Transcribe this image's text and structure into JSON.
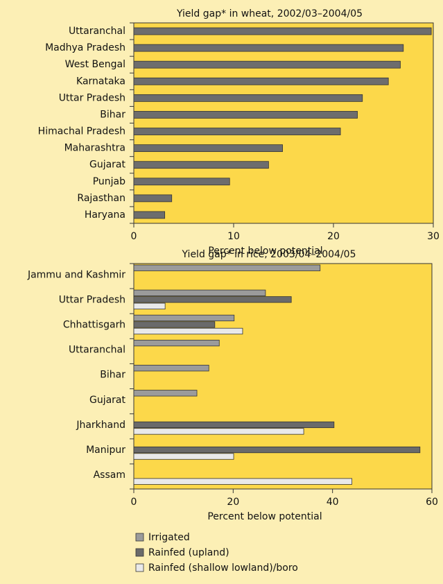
{
  "chart_data": [
    {
      "type": "bar",
      "orientation": "horizontal",
      "title": "Yield gap* in wheat, 2002/03–2004/05",
      "x_label": "Percent below potential",
      "categories": [
        "Uttaranchal",
        "Madhya Pradesh",
        "West Bengal",
        "Karnataka",
        "Uttar Pradesh",
        "Bihar",
        "Himachal Pradesh",
        "Maharashtra",
        "Gujarat",
        "Punjab",
        "Rajasthan",
        "Haryana"
      ],
      "values": [
        29.8,
        27.0,
        26.7,
        25.5,
        22.9,
        22.4,
        20.7,
        14.9,
        13.5,
        9.6,
        3.8,
        3.1
      ],
      "color": "#6d6d6d",
      "xlim": [
        0,
        30
      ],
      "xticks": [
        0,
        10,
        20,
        30
      ]
    },
    {
      "type": "bar",
      "orientation": "horizontal",
      "title": "Yield gap* in rice, 2003/04–2004/05",
      "x_label": "Percent below potential",
      "categories": [
        "Jammu and Kashmir",
        "Uttar Pradesh",
        "Chhattisgarh",
        "Uttaranchal",
        "Bihar",
        "Gujarat",
        "Jharkhand",
        "Manipur",
        "Assam"
      ],
      "series": [
        {
          "name": "Irrigated",
          "color": "#9b9b9b",
          "values": [
            37.5,
            26.5,
            20.2,
            17.2,
            15.1,
            12.7,
            null,
            null,
            null
          ]
        },
        {
          "name": "Rainfed (upland)",
          "color": "#6a6a6a",
          "values": [
            null,
            31.7,
            16.3,
            null,
            null,
            null,
            40.3,
            57.6,
            null
          ]
        },
        {
          "name": "Rainfed (shallow lowland)/boro",
          "color": "#e9e9e9",
          "values": [
            null,
            6.3,
            21.9,
            null,
            null,
            null,
            34.2,
            20.1,
            43.9
          ]
        }
      ],
      "xlim": [
        0,
        60
      ],
      "xticks": [
        0,
        20,
        40,
        60
      ]
    }
  ]
}
